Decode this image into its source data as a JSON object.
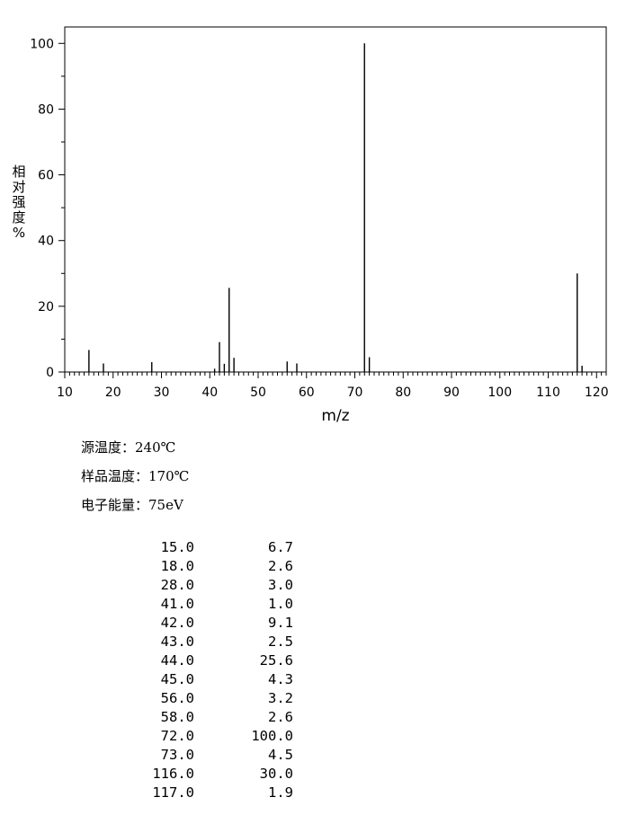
{
  "chart_data": {
    "type": "bar",
    "xlabel": "m/z",
    "ylabel": "相\n对\n强\n度\n%",
    "xlim": [
      10,
      122
    ],
    "ylim": [
      0,
      105
    ],
    "xticks": [
      10,
      20,
      30,
      40,
      50,
      60,
      70,
      80,
      90,
      100,
      110,
      120
    ],
    "yticks": [
      0,
      20,
      40,
      60,
      80,
      100
    ],
    "peaks": [
      {
        "mz": 15.0,
        "intensity": 6.7
      },
      {
        "mz": 18.0,
        "intensity": 2.6
      },
      {
        "mz": 28.0,
        "intensity": 3.0
      },
      {
        "mz": 41.0,
        "intensity": 1.0
      },
      {
        "mz": 42.0,
        "intensity": 9.1
      },
      {
        "mz": 43.0,
        "intensity": 2.5
      },
      {
        "mz": 44.0,
        "intensity": 25.6
      },
      {
        "mz": 45.0,
        "intensity": 4.3
      },
      {
        "mz": 56.0,
        "intensity": 3.2
      },
      {
        "mz": 58.0,
        "intensity": 2.6
      },
      {
        "mz": 72.0,
        "intensity": 100.0
      },
      {
        "mz": 73.0,
        "intensity": 4.5
      },
      {
        "mz": 116.0,
        "intensity": 30.0
      },
      {
        "mz": 117.0,
        "intensity": 1.9
      }
    ]
  },
  "meta": {
    "source_temp": "源温度：240℃",
    "sample_temp": "样品温度：170℃",
    "electron_energy": "电子能量：75eV"
  },
  "peak_table": [
    {
      "mz": "15.0",
      "intensity": "6.7"
    },
    {
      "mz": "18.0",
      "intensity": "2.6"
    },
    {
      "mz": "28.0",
      "intensity": "3.0"
    },
    {
      "mz": "41.0",
      "intensity": "1.0"
    },
    {
      "mz": "42.0",
      "intensity": "9.1"
    },
    {
      "mz": "43.0",
      "intensity": "2.5"
    },
    {
      "mz": "44.0",
      "intensity": "25.6"
    },
    {
      "mz": "45.0",
      "intensity": "4.3"
    },
    {
      "mz": "56.0",
      "intensity": "3.2"
    },
    {
      "mz": "58.0",
      "intensity": "2.6"
    },
    {
      "mz": "72.0",
      "intensity": "100.0"
    },
    {
      "mz": "73.0",
      "intensity": "4.5"
    },
    {
      "mz": "116.0",
      "intensity": "30.0"
    },
    {
      "mz": "117.0",
      "intensity": "1.9"
    }
  ]
}
